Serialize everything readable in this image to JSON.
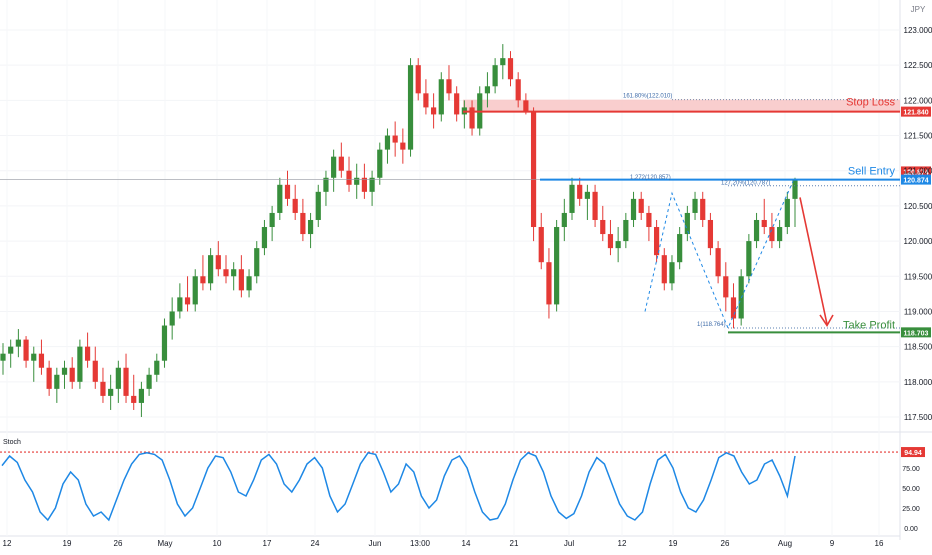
{
  "currency": "JPY",
  "chart_data": {
    "type": "candlestick",
    "yaxis": {
      "min": 117.3,
      "max": 123.3,
      "ticks": [
        "123.000",
        "122.500",
        "122.000",
        "121.500",
        "121.000",
        "120.500",
        "120.000",
        "119.500",
        "119.000",
        "118.500",
        "118.000",
        "117.500"
      ]
    },
    "xaxis": {
      "ticks": [
        "12",
        "19",
        "26",
        "May",
        "10",
        "17",
        "24",
        "Jun",
        "13:00",
        "14",
        "21",
        "Jul",
        "12",
        "19",
        "26",
        "Aug",
        "9",
        "16"
      ]
    },
    "levels": {
      "stop_loss": {
        "label": "Stop Loss",
        "value": 121.84,
        "price_text": "121.840",
        "color": "#e53935"
      },
      "sell_entry": {
        "label": "Sell Entry",
        "value": 120.874,
        "price_text": "120.874",
        "color": "#1e88e5"
      },
      "take_profit": {
        "label": "Take Profit",
        "value": 118.703,
        "price_text": "118.703",
        "color": "#388e3c"
      }
    },
    "fib_labels": {
      "fib1618": "161.80%(122.010)",
      "fib1272": "1.272(120.857)",
      "fib127": "127.20%(120.787)",
      "fib1": "1(118.764)"
    },
    "candles_ohlc": [
      [
        118.3,
        118.55,
        118.1,
        118.4
      ],
      [
        118.4,
        118.6,
        118.2,
        118.5
      ],
      [
        118.5,
        118.75,
        118.35,
        118.6
      ],
      [
        118.6,
        118.65,
        118.2,
        118.3
      ],
      [
        118.3,
        118.5,
        118.0,
        118.4
      ],
      [
        118.4,
        118.6,
        118.1,
        118.2
      ],
      [
        118.2,
        118.3,
        117.8,
        117.9
      ],
      [
        117.9,
        118.2,
        117.7,
        118.1
      ],
      [
        118.1,
        118.3,
        117.9,
        118.2
      ],
      [
        118.2,
        118.35,
        117.9,
        118.0
      ],
      [
        118.0,
        118.6,
        117.9,
        118.5
      ],
      [
        118.5,
        118.7,
        118.2,
        118.3
      ],
      [
        118.3,
        118.5,
        117.9,
        118.0
      ],
      [
        118.0,
        118.2,
        117.7,
        117.8
      ],
      [
        117.8,
        118.1,
        117.6,
        117.9
      ],
      [
        117.9,
        118.3,
        117.7,
        118.2
      ],
      [
        118.2,
        118.4,
        117.7,
        117.8
      ],
      [
        117.8,
        118.1,
        117.6,
        117.7
      ],
      [
        117.7,
        118.0,
        117.5,
        117.9
      ],
      [
        117.9,
        118.2,
        117.8,
        118.1
      ],
      [
        118.1,
        118.4,
        118.0,
        118.3
      ],
      [
        118.3,
        118.9,
        118.2,
        118.8
      ],
      [
        118.8,
        119.2,
        118.6,
        119.0
      ],
      [
        119.0,
        119.4,
        118.9,
        119.2
      ],
      [
        119.2,
        119.5,
        119.0,
        119.1
      ],
      [
        119.1,
        119.6,
        119.0,
        119.5
      ],
      [
        119.5,
        119.8,
        119.3,
        119.4
      ],
      [
        119.4,
        119.9,
        119.3,
        119.8
      ],
      [
        119.8,
        120.0,
        119.5,
        119.6
      ],
      [
        119.6,
        119.8,
        119.4,
        119.5
      ],
      [
        119.5,
        119.7,
        119.3,
        119.6
      ],
      [
        119.6,
        119.8,
        119.2,
        119.3
      ],
      [
        119.3,
        119.6,
        119.2,
        119.5
      ],
      [
        119.5,
        120.0,
        119.4,
        119.9
      ],
      [
        119.9,
        120.3,
        119.8,
        120.2
      ],
      [
        120.2,
        120.5,
        120.0,
        120.4
      ],
      [
        120.4,
        120.9,
        120.3,
        120.8
      ],
      [
        120.8,
        121.0,
        120.5,
        120.6
      ],
      [
        120.6,
        120.8,
        120.3,
        120.4
      ],
      [
        120.4,
        120.6,
        120.0,
        120.1
      ],
      [
        120.1,
        120.4,
        119.9,
        120.3
      ],
      [
        120.3,
        120.8,
        120.2,
        120.7
      ],
      [
        120.7,
        121.0,
        120.5,
        120.9
      ],
      [
        120.9,
        121.3,
        120.7,
        121.2
      ],
      [
        121.2,
        121.4,
        120.9,
        121.0
      ],
      [
        121.0,
        121.2,
        120.7,
        120.8
      ],
      [
        120.8,
        121.1,
        120.6,
        120.9
      ],
      [
        120.9,
        121.1,
        120.6,
        120.7
      ],
      [
        120.7,
        121.0,
        120.5,
        120.9
      ],
      [
        120.9,
        121.4,
        120.8,
        121.3
      ],
      [
        121.3,
        121.6,
        121.1,
        121.5
      ],
      [
        121.5,
        121.7,
        121.2,
        121.4
      ],
      [
        121.4,
        121.6,
        121.1,
        121.3
      ],
      [
        121.3,
        122.6,
        121.2,
        122.5
      ],
      [
        122.5,
        122.6,
        122.0,
        122.1
      ],
      [
        122.1,
        122.3,
        121.8,
        121.9
      ],
      [
        121.9,
        122.1,
        121.6,
        121.8
      ],
      [
        121.8,
        122.4,
        121.7,
        122.3
      ],
      [
        122.3,
        122.5,
        122.0,
        122.1
      ],
      [
        122.1,
        122.2,
        121.7,
        121.8
      ],
      [
        121.8,
        122.0,
        121.6,
        121.9
      ],
      [
        121.9,
        122.0,
        121.5,
        121.6
      ],
      [
        121.6,
        122.2,
        121.5,
        122.1
      ],
      [
        122.1,
        122.4,
        121.9,
        122.2
      ],
      [
        122.2,
        122.6,
        122.1,
        122.5
      ],
      [
        122.5,
        122.8,
        122.3,
        122.6
      ],
      [
        122.6,
        122.7,
        122.2,
        122.3
      ],
      [
        122.3,
        122.4,
        121.9,
        122.0
      ],
      [
        122.0,
        122.1,
        121.8,
        121.84
      ],
      [
        121.84,
        121.9,
        120.0,
        120.2
      ],
      [
        120.2,
        120.4,
        119.6,
        119.7
      ],
      [
        119.7,
        119.9,
        118.9,
        119.1
      ],
      [
        119.1,
        120.3,
        119.0,
        120.2
      ],
      [
        120.2,
        120.6,
        120.0,
        120.4
      ],
      [
        120.4,
        120.9,
        120.3,
        120.8
      ],
      [
        120.8,
        120.9,
        120.5,
        120.6
      ],
      [
        120.6,
        120.8,
        120.3,
        120.7
      ],
      [
        120.7,
        120.8,
        120.2,
        120.3
      ],
      [
        120.3,
        120.5,
        120.0,
        120.1
      ],
      [
        120.1,
        120.3,
        119.8,
        119.9
      ],
      [
        119.9,
        120.2,
        119.7,
        120.0
      ],
      [
        120.0,
        120.4,
        119.9,
        120.3
      ],
      [
        120.3,
        120.7,
        120.2,
        120.6
      ],
      [
        120.6,
        120.7,
        120.3,
        120.4
      ],
      [
        120.4,
        120.5,
        120.0,
        120.2
      ],
      [
        120.2,
        120.3,
        119.7,
        119.8
      ],
      [
        119.8,
        119.9,
        119.3,
        119.4
      ],
      [
        119.4,
        119.8,
        119.3,
        119.7
      ],
      [
        119.7,
        120.2,
        119.6,
        120.1
      ],
      [
        120.1,
        120.5,
        120.0,
        120.4
      ],
      [
        120.4,
        120.7,
        120.3,
        120.6
      ],
      [
        120.6,
        120.7,
        120.2,
        120.3
      ],
      [
        120.3,
        120.4,
        119.8,
        119.9
      ],
      [
        119.9,
        120.0,
        119.4,
        119.5
      ],
      [
        119.5,
        119.7,
        119.0,
        119.2
      ],
      [
        119.2,
        119.4,
        118.76,
        118.9
      ],
      [
        118.9,
        119.6,
        118.8,
        119.5
      ],
      [
        119.5,
        120.1,
        119.4,
        120.0
      ],
      [
        120.0,
        120.4,
        119.9,
        120.3
      ],
      [
        120.3,
        120.6,
        120.1,
        120.2
      ],
      [
        120.2,
        120.4,
        119.9,
        120.0
      ],
      [
        120.0,
        120.3,
        119.9,
        120.2
      ],
      [
        120.2,
        120.7,
        120.1,
        120.6
      ],
      [
        120.6,
        120.9,
        120.2,
        120.87
      ]
    ],
    "stoch_label": "Stoch",
    "stoch_level": {
      "value": 94.94,
      "text": "94.94"
    },
    "stoch_ticks": [
      "75.00",
      "50.00",
      "25.00",
      "0.00"
    ],
    "stoch_values": [
      78,
      90,
      82,
      60,
      45,
      20,
      10,
      25,
      55,
      70,
      60,
      30,
      15,
      20,
      10,
      35,
      60,
      80,
      92,
      94,
      92,
      85,
      60,
      30,
      15,
      25,
      50,
      75,
      90,
      88,
      70,
      45,
      40,
      60,
      85,
      92,
      80,
      55,
      45,
      60,
      80,
      88,
      75,
      40,
      20,
      30,
      55,
      80,
      94,
      92,
      70,
      45,
      55,
      80,
      70,
      40,
      25,
      35,
      65,
      85,
      90,
      75,
      45,
      20,
      10,
      12,
      30,
      60,
      85,
      94,
      90,
      70,
      40,
      20,
      12,
      18,
      40,
      70,
      88,
      80,
      55,
      30,
      15,
      10,
      20,
      55,
      85,
      92,
      75,
      45,
      25,
      20,
      35,
      60,
      88,
      94,
      90,
      70,
      55,
      60,
      80,
      85,
      65,
      40,
      90
    ]
  }
}
